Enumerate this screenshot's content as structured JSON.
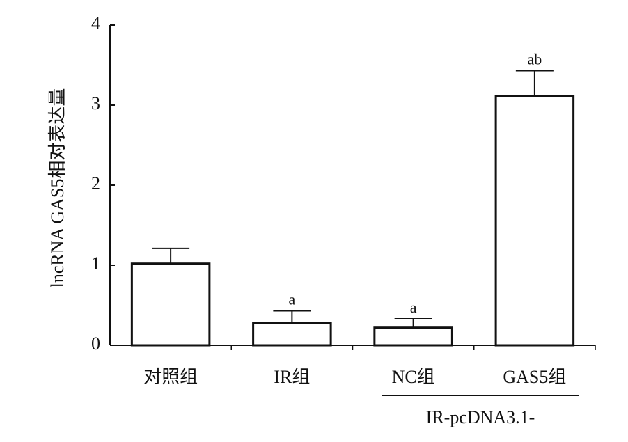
{
  "chart_data": {
    "type": "bar",
    "y_label": "lncRNA GAS5相对表达量",
    "categories": [
      "对照组",
      "IR组",
      "NC组",
      "GAS5组"
    ],
    "values": [
      1.02,
      0.28,
      0.22,
      3.11
    ],
    "errors": [
      0.19,
      0.15,
      0.11,
      0.32
    ],
    "annotations": [
      null,
      "a",
      "a",
      "ab"
    ],
    "group_label": "IR-pcDNA3.1-",
    "color": "#ffffff",
    "ylim": [
      0,
      4
    ],
    "yticks": [
      0,
      1,
      2,
      3,
      4
    ],
    "grid": false
  }
}
